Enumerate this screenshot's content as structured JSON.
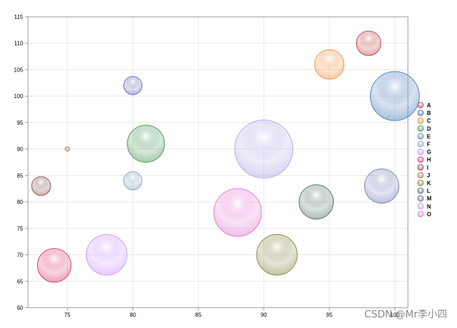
{
  "chart_data": {
    "type": "scatter",
    "variant": "bubble",
    "title": "",
    "xlabel": "",
    "ylabel": "",
    "xlim": [
      72,
      101
    ],
    "ylim": [
      60,
      115
    ],
    "x_ticks": [
      75,
      80,
      85,
      90,
      95,
      100
    ],
    "x_tick_labels": [
      "75",
      "80",
      "85",
      "90",
      "95",
      "100"
    ],
    "y_ticks": [
      60,
      65,
      70,
      75,
      80,
      85,
      90,
      95,
      100,
      105,
      110,
      115
    ],
    "y_tick_labels": [
      "60",
      "65",
      "70",
      "75",
      "80",
      "85",
      "90",
      "95",
      "100",
      "105",
      "110",
      "115"
    ],
    "grid": true,
    "legend_position": "right",
    "series": [
      {
        "name": "A",
        "x": 98,
        "y": 110,
        "size": 35,
        "color": "#c0504d"
      },
      {
        "name": "B",
        "x": 100,
        "y": 100,
        "size": 70,
        "color": "#4f81bd"
      },
      {
        "name": "C",
        "x": 95,
        "y": 106,
        "size": 42,
        "color": "#f79646"
      },
      {
        "name": "D",
        "x": 81,
        "y": 91,
        "size": 53,
        "color": "#4e9a5a"
      },
      {
        "name": "E",
        "x": 99,
        "y": 83,
        "size": 49,
        "color": "#7f86b8"
      },
      {
        "name": "F",
        "x": 80,
        "y": 84,
        "size": 26,
        "color": "#8aabbd"
      },
      {
        "name": "G",
        "x": 78,
        "y": 70,
        "size": 58,
        "color": "#cc99ff"
      },
      {
        "name": "H",
        "x": 74,
        "y": 68,
        "size": 48,
        "color": "#e0457b"
      },
      {
        "name": "I",
        "x": 73,
        "y": 83,
        "size": 27,
        "color": "#8b5a5a"
      },
      {
        "name": "J",
        "x": 75,
        "y": 90,
        "size": 6,
        "color": "#b07a6a"
      },
      {
        "name": "K",
        "x": 91,
        "y": 70,
        "size": 58,
        "color": "#8b8b4b"
      },
      {
        "name": "L",
        "x": 94,
        "y": 80,
        "size": 49,
        "color": "#5a7a6e"
      },
      {
        "name": "M",
        "x": 80,
        "y": 102,
        "size": 26,
        "color": "#6a74b8"
      },
      {
        "name": "N",
        "x": 90,
        "y": 90,
        "size": 83,
        "color": "#b2aee6"
      },
      {
        "name": "O",
        "x": 88,
        "y": 78,
        "size": 68,
        "color": "#e57fd6"
      }
    ]
  },
  "watermark": "CSDN @Mr李小四"
}
